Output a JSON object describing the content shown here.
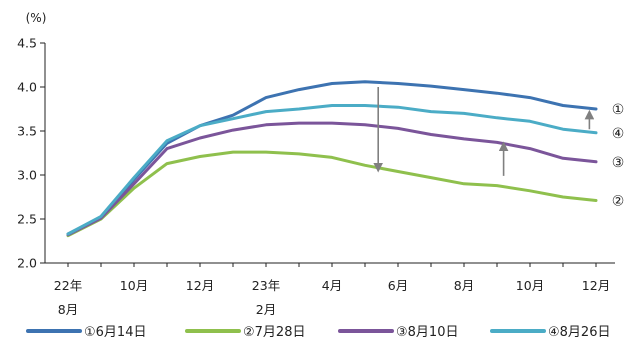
{
  "chart_data": {
    "type": "line",
    "ylabel": "(%)",
    "ylim": [
      2.0,
      4.5
    ],
    "yticks": [
      "2.0",
      "2.5",
      "3.0",
      "3.5",
      "4.0",
      "4.5"
    ],
    "x_tick_labels": [
      {
        "line1": "22年",
        "line2": "8月",
        "index": 0
      },
      {
        "line1": "10月",
        "line2": "",
        "index": 2
      },
      {
        "line1": "12月",
        "line2": "",
        "index": 4
      },
      {
        "line1": "23年",
        "line2": "2月",
        "index": 6
      },
      {
        "line1": "4月",
        "line2": "",
        "index": 8
      },
      {
        "line1": "6月",
        "line2": "",
        "index": 10
      },
      {
        "line1": "8月",
        "line2": "",
        "index": 12
      },
      {
        "line1": "10月",
        "line2": "",
        "index": 14
      },
      {
        "line1": "12月",
        "line2": "",
        "index": 16
      }
    ],
    "x": [
      "2022-08",
      "2022-09",
      "2022-10",
      "2022-11",
      "2022-12",
      "2023-01",
      "2023-02",
      "2023-03",
      "2023-04",
      "2023-05",
      "2023-06",
      "2023-07",
      "2023-08",
      "2023-09",
      "2023-10",
      "2023-11",
      "2023-12"
    ],
    "series": [
      {
        "name": "①6月14日",
        "end_label": "①",
        "color": "#3d73b1",
        "values": [
          2.33,
          2.52,
          2.95,
          3.36,
          3.56,
          3.68,
          3.88,
          3.97,
          4.04,
          4.06,
          4.04,
          4.01,
          3.97,
          3.93,
          3.88,
          3.79,
          3.75
        ]
      },
      {
        "name": "②7月28日",
        "end_label": "②",
        "color": "#8fc04d",
        "values": [
          2.31,
          2.5,
          2.85,
          3.13,
          3.21,
          3.26,
          3.26,
          3.24,
          3.2,
          3.11,
          3.04,
          2.97,
          2.9,
          2.88,
          2.82,
          2.75,
          2.71
        ]
      },
      {
        "name": "③8月10日",
        "end_label": "③",
        "color": "#7b559a",
        "values": [
          2.32,
          2.51,
          2.9,
          3.3,
          3.42,
          3.51,
          3.57,
          3.59,
          3.59,
          3.57,
          3.53,
          3.46,
          3.41,
          3.37,
          3.3,
          3.19,
          3.15
        ]
      },
      {
        "name": "④8月26日",
        "end_label": "④",
        "color": "#4bacc6",
        "values": [
          2.33,
          2.53,
          2.97,
          3.39,
          3.56,
          3.64,
          3.72,
          3.75,
          3.79,
          3.79,
          3.77,
          3.72,
          3.7,
          3.65,
          3.61,
          3.52,
          3.48
        ]
      }
    ],
    "annotations": [
      {
        "type": "arrow",
        "x_index": 9.4,
        "from": 4.0,
        "to": 3.05,
        "color": "#808080"
      },
      {
        "type": "arrow",
        "x_index": 13.2,
        "from": 2.99,
        "to": 3.36,
        "color": "#808080"
      },
      {
        "type": "arrow",
        "x_index": 15.8,
        "from": 3.52,
        "to": 3.72,
        "color": "#808080"
      }
    ],
    "grid": false,
    "legend_position": "bottom"
  }
}
